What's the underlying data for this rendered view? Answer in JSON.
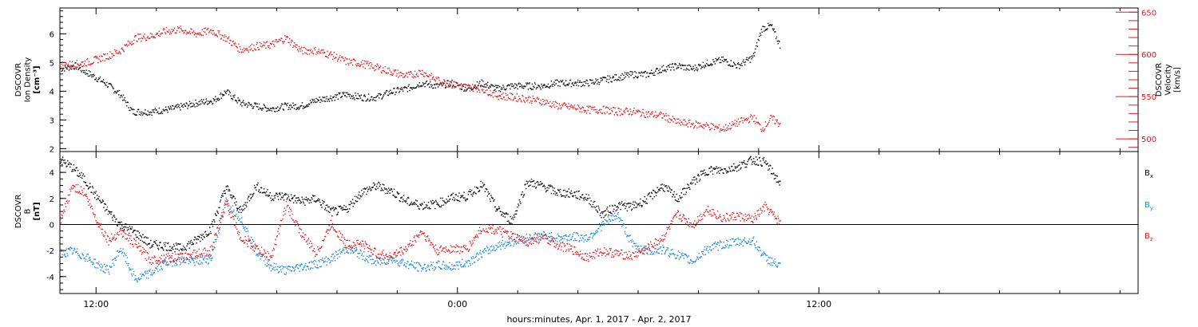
{
  "footer": {
    "xlabel": "hours:minutes, Apr.  1, 2017 - Apr.  2, 2017"
  },
  "colors": {
    "black": "#000000",
    "red": "#e8191b",
    "blue": "#1a86e0"
  },
  "chart_data": [
    {
      "type": "scatter",
      "panel": "top",
      "ylabel_left": [
        "DSCOVR",
        "Ion Density",
        "[cm⁻³]"
      ],
      "ylabel_right": [
        "DSCOVR",
        "Velocity",
        "[km/s]"
      ],
      "x_ticks": [
        "12:00",
        "0:00",
        "12:00"
      ],
      "x_range_hours": [
        10.8,
        46.6
      ],
      "x_data_end_hours": 34.7,
      "ylim_left": [
        1.9,
        6.9
      ],
      "yticks_left": [
        "2",
        "3",
        "4",
        "5",
        "6"
      ],
      "ylim_right": [
        485,
        655
      ],
      "yticks_right": [
        "500",
        "550",
        "600",
        "650"
      ],
      "series": [
        {
          "axis": "left",
          "color": "#000000",
          "points": [
            [
              10.8,
              4.8
            ],
            [
              11.3,
              4.9
            ],
            [
              11.8,
              4.6
            ],
            [
              12.3,
              4.3
            ],
            [
              12.8,
              3.9
            ],
            [
              13.2,
              3.3
            ],
            [
              13.8,
              3.3
            ],
            [
              14.5,
              3.4
            ],
            [
              15.3,
              3.6
            ],
            [
              15.9,
              3.7
            ],
            [
              16.3,
              4.0
            ],
            [
              16.8,
              3.6
            ],
            [
              17.3,
              3.5
            ],
            [
              17.8,
              3.4
            ],
            [
              18.3,
              3.5
            ],
            [
              18.8,
              3.5
            ],
            [
              19.3,
              3.7
            ],
            [
              19.8,
              3.8
            ],
            [
              20.3,
              3.9
            ],
            [
              20.8,
              3.8
            ],
            [
              21.3,
              3.8
            ],
            [
              21.8,
              4.0
            ],
            [
              22.3,
              4.1
            ],
            [
              22.8,
              4.3
            ],
            [
              23.3,
              4.2
            ],
            [
              23.8,
              4.3
            ],
            [
              24.3,
              4.1
            ],
            [
              24.8,
              4.3
            ],
            [
              25.3,
              4.1
            ],
            [
              25.8,
              4.2
            ],
            [
              26.3,
              4.2
            ],
            [
              26.8,
              4.2
            ],
            [
              27.3,
              4.3
            ],
            [
              27.8,
              4.3
            ],
            [
              28.3,
              4.3
            ],
            [
              28.8,
              4.4
            ],
            [
              29.3,
              4.5
            ],
            [
              29.8,
              4.6
            ],
            [
              30.3,
              4.6
            ],
            [
              30.8,
              4.8
            ],
            [
              31.3,
              4.9
            ],
            [
              31.8,
              4.8
            ],
            [
              32.3,
              5.0
            ],
            [
              32.8,
              5.1
            ],
            [
              33.3,
              4.9
            ],
            [
              33.8,
              5.2
            ],
            [
              34.1,
              6.2
            ],
            [
              34.4,
              6.3
            ],
            [
              34.7,
              5.6
            ]
          ]
        },
        {
          "axis": "right",
          "color": "#e8191b",
          "points": [
            [
              10.8,
              588
            ],
            [
              11.3,
              589
            ],
            [
              11.8,
              592
            ],
            [
              12.3,
              598
            ],
            [
              12.8,
              605
            ],
            [
              13.3,
              620
            ],
            [
              13.8,
              622
            ],
            [
              14.3,
              628
            ],
            [
              14.8,
              630
            ],
            [
              15.3,
              625
            ],
            [
              15.8,
              629
            ],
            [
              16.3,
              620
            ],
            [
              16.8,
              606
            ],
            [
              17.3,
              610
            ],
            [
              17.8,
              612
            ],
            [
              18.3,
              620
            ],
            [
              18.8,
              605
            ],
            [
              19.3,
              605
            ],
            [
              19.8,
              600
            ],
            [
              20.3,
              592
            ],
            [
              20.8,
              590
            ],
            [
              21.3,
              585
            ],
            [
              21.8,
              580
            ],
            [
              22.3,
              575
            ],
            [
              22.8,
              580
            ],
            [
              23.3,
              570
            ],
            [
              23.8,
              565
            ],
            [
              24.3,
              562
            ],
            [
              24.8,
              560
            ],
            [
              25.3,
              552
            ],
            [
              25.8,
              550
            ],
            [
              26.3,
              548
            ],
            [
              26.8,
              545
            ],
            [
              27.3,
              540
            ],
            [
              27.8,
              538
            ],
            [
              28.3,
              535
            ],
            [
              28.8,
              535
            ],
            [
              29.3,
              533
            ],
            [
              29.8,
              533
            ],
            [
              30.3,
              530
            ],
            [
              30.8,
              528
            ],
            [
              31.3,
              520
            ],
            [
              31.8,
              518
            ],
            [
              32.3,
              516
            ],
            [
              32.8,
              512
            ],
            [
              33.3,
              520
            ],
            [
              33.8,
              526
            ],
            [
              34.1,
              512
            ],
            [
              34.4,
              525
            ],
            [
              34.7,
              518
            ]
          ]
        }
      ]
    },
    {
      "type": "scatter",
      "panel": "bottom",
      "ylabel_left": [
        "DSCOVR",
        "B",
        "[nT]"
      ],
      "x_ticks": [
        "12:00",
        "0:00",
        "12:00"
      ],
      "x_range_hours": [
        10.8,
        46.6
      ],
      "ylim": [
        -5.3,
        5.6
      ],
      "yticks": [
        "-4",
        "-2",
        "0",
        "2",
        "4"
      ],
      "zero_line": true,
      "series": [
        {
          "name": "Bx",
          "color": "#000000",
          "points": [
            [
              10.8,
              5.0
            ],
            [
              11.2,
              4.4
            ],
            [
              11.6,
              3.5
            ],
            [
              12.0,
              2.2
            ],
            [
              12.4,
              1.0
            ],
            [
              12.8,
              0.0
            ],
            [
              13.3,
              -0.6
            ],
            [
              13.8,
              -1.5
            ],
            [
              14.3,
              -1.6
            ],
            [
              14.8,
              -1.8
            ],
            [
              15.3,
              -1.2
            ],
            [
              15.8,
              -0.3
            ],
            [
              16.3,
              2.9
            ],
            [
              16.8,
              1.0
            ],
            [
              17.3,
              3.0
            ],
            [
              17.8,
              2.2
            ],
            [
              18.3,
              2.2
            ],
            [
              18.8,
              1.8
            ],
            [
              19.3,
              2.0
            ],
            [
              19.8,
              1.0
            ],
            [
              20.3,
              1.2
            ],
            [
              20.8,
              2.5
            ],
            [
              21.3,
              3.0
            ],
            [
              21.8,
              2.6
            ],
            [
              22.3,
              1.8
            ],
            [
              22.8,
              1.5
            ],
            [
              23.3,
              1.6
            ],
            [
              23.8,
              2.1
            ],
            [
              24.3,
              2.2
            ],
            [
              24.8,
              3.1
            ],
            [
              25.3,
              1.2
            ],
            [
              25.8,
              0.3
            ],
            [
              26.3,
              3.3
            ],
            [
              26.8,
              3.0
            ],
            [
              27.3,
              2.5
            ],
            [
              27.8,
              2.4
            ],
            [
              28.3,
              2.1
            ],
            [
              28.8,
              0.8
            ],
            [
              29.3,
              1.5
            ],
            [
              29.8,
              1.4
            ],
            [
              30.3,
              2.0
            ],
            [
              30.8,
              3.0
            ],
            [
              31.3,
              2.0
            ],
            [
              31.8,
              3.3
            ],
            [
              32.3,
              4.2
            ],
            [
              32.8,
              4.2
            ],
            [
              33.3,
              4.5
            ],
            [
              33.8,
              5.0
            ],
            [
              34.2,
              4.8
            ],
            [
              34.7,
              3.2
            ]
          ]
        },
        {
          "name": "By",
          "color": "#1a86e0",
          "points": [
            [
              10.8,
              -2.2
            ],
            [
              11.2,
              -2.0
            ],
            [
              11.6,
              -2.4
            ],
            [
              12.0,
              -3.0
            ],
            [
              12.4,
              -3.5
            ],
            [
              12.8,
              -1.8
            ],
            [
              13.3,
              -4.2
            ],
            [
              13.8,
              -3.7
            ],
            [
              14.3,
              -2.9
            ],
            [
              14.8,
              -2.7
            ],
            [
              15.3,
              -2.8
            ],
            [
              15.8,
              -2.6
            ],
            [
              16.3,
              1.8
            ],
            [
              16.8,
              0.5
            ],
            [
              17.3,
              -2.0
            ],
            [
              17.8,
              -3.2
            ],
            [
              18.3,
              -3.5
            ],
            [
              18.8,
              -3.2
            ],
            [
              19.3,
              -3.0
            ],
            [
              19.8,
              -2.6
            ],
            [
              20.3,
              -1.8
            ],
            [
              20.8,
              -2.3
            ],
            [
              21.3,
              -2.9
            ],
            [
              21.8,
              -2.6
            ],
            [
              22.3,
              -3.0
            ],
            [
              22.8,
              -3.3
            ],
            [
              23.3,
              -3.1
            ],
            [
              23.8,
              -3.2
            ],
            [
              24.3,
              -2.9
            ],
            [
              24.8,
              -2.2
            ],
            [
              25.3,
              -1.6
            ],
            [
              25.8,
              -1.3
            ],
            [
              26.3,
              -1.0
            ],
            [
              26.8,
              -0.8
            ],
            [
              27.3,
              -1.0
            ],
            [
              27.8,
              -0.9
            ],
            [
              28.3,
              -1.0
            ],
            [
              28.8,
              0.0
            ],
            [
              29.3,
              0.8
            ],
            [
              29.8,
              -1.5
            ],
            [
              30.3,
              -2.0
            ],
            [
              30.8,
              -1.9
            ],
            [
              31.3,
              -2.3
            ],
            [
              31.8,
              -2.8
            ],
            [
              32.3,
              -1.8
            ],
            [
              32.8,
              -1.5
            ],
            [
              33.3,
              -1.3
            ],
            [
              33.8,
              -1.2
            ],
            [
              34.2,
              -2.5
            ],
            [
              34.7,
              -3.2
            ]
          ]
        },
        {
          "name": "Bz",
          "color": "#e8191b",
          "points": [
            [
              10.8,
              0.2
            ],
            [
              11.2,
              3.0
            ],
            [
              11.6,
              2.5
            ],
            [
              12.0,
              0.4
            ],
            [
              12.4,
              -1.2
            ],
            [
              12.8,
              -0.5
            ],
            [
              13.3,
              -1.5
            ],
            [
              13.8,
              -2.7
            ],
            [
              14.3,
              -2.5
            ],
            [
              14.8,
              -2.5
            ],
            [
              15.3,
              -2.2
            ],
            [
              15.8,
              -2.0
            ],
            [
              16.3,
              1.7
            ],
            [
              16.8,
              -1.0
            ],
            [
              17.3,
              -1.8
            ],
            [
              17.8,
              -2.5
            ],
            [
              18.3,
              1.5
            ],
            [
              18.8,
              -0.6
            ],
            [
              19.3,
              -2.2
            ],
            [
              19.8,
              0.1
            ],
            [
              20.3,
              -1.5
            ],
            [
              20.8,
              -1.4
            ],
            [
              21.3,
              -2.2
            ],
            [
              21.8,
              -2.4
            ],
            [
              22.3,
              -1.8
            ],
            [
              22.8,
              -0.5
            ],
            [
              23.3,
              -2.0
            ],
            [
              23.8,
              -1.8
            ],
            [
              24.3,
              -1.9
            ],
            [
              24.8,
              -0.2
            ],
            [
              25.3,
              -0.4
            ],
            [
              25.8,
              -0.9
            ],
            [
              26.3,
              -1.3
            ],
            [
              26.8,
              -1.0
            ],
            [
              27.3,
              -1.5
            ],
            [
              27.8,
              -1.9
            ],
            [
              28.3,
              -2.5
            ],
            [
              28.8,
              -2.0
            ],
            [
              29.3,
              -2.2
            ],
            [
              29.8,
              -2.4
            ],
            [
              30.3,
              -1.8
            ],
            [
              30.8,
              -1.0
            ],
            [
              31.3,
              0.8
            ],
            [
              31.8,
              0.0
            ],
            [
              32.3,
              1.2
            ],
            [
              32.8,
              0.5
            ],
            [
              33.3,
              0.7
            ],
            [
              33.8,
              0.4
            ],
            [
              34.2,
              1.4
            ],
            [
              34.7,
              0.2
            ]
          ]
        }
      ],
      "legend": [
        {
          "label": "B",
          "subscript": "x",
          "color": "#000000"
        },
        {
          "label": "B",
          "subscript": "y",
          "color": "#1a86e0"
        },
        {
          "label": "B",
          "subscript": "z",
          "color": "#e8191b"
        }
      ]
    }
  ]
}
